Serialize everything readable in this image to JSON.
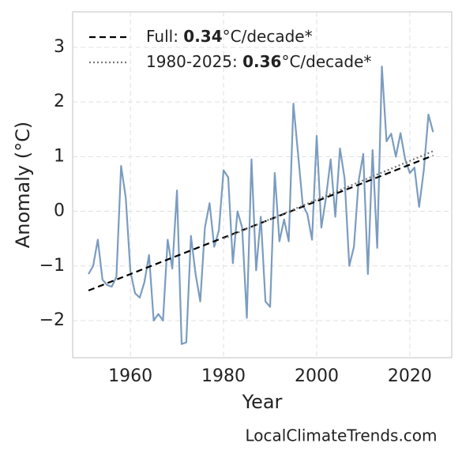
{
  "chart_data": {
    "type": "line",
    "x_label": "Year",
    "y_label": "Anomaly (°C)",
    "watermark": "LocalClimateTrends.com",
    "x": [
      1951,
      1952,
      1953,
      1954,
      1955,
      1956,
      1957,
      1958,
      1959,
      1960,
      1961,
      1962,
      1963,
      1964,
      1965,
      1966,
      1967,
      1968,
      1969,
      1970,
      1971,
      1972,
      1973,
      1974,
      1975,
      1976,
      1977,
      1978,
      1979,
      1980,
      1981,
      1982,
      1983,
      1984,
      1985,
      1986,
      1987,
      1988,
      1989,
      1990,
      1991,
      1992,
      1993,
      1994,
      1995,
      1996,
      1997,
      1998,
      1999,
      2000,
      2001,
      2002,
      2003,
      2004,
      2005,
      2006,
      2007,
      2008,
      2009,
      2010,
      2011,
      2012,
      2013,
      2014,
      2015,
      2016,
      2017,
      2018,
      2019,
      2020,
      2021,
      2022,
      2023,
      2024,
      2025
    ],
    "series": [
      {
        "color": "#7b9cc0",
        "values": [
          -1.15,
          -1.0,
          -0.52,
          -1.25,
          -1.35,
          -1.38,
          -1.2,
          0.83,
          0.25,
          -1.1,
          -1.5,
          -1.58,
          -1.3,
          -0.8,
          -2.0,
          -1.88,
          -2.0,
          -0.52,
          -1.05,
          0.38,
          -2.43,
          -2.4,
          -0.45,
          -1.15,
          -1.65,
          -0.3,
          0.15,
          -0.65,
          -0.35,
          0.75,
          0.62,
          -0.95,
          0.0,
          -0.3,
          -1.95,
          0.95,
          -1.08,
          -0.1,
          -1.65,
          -1.75,
          0.7,
          -0.55,
          -0.15,
          -0.55,
          1.97,
          1.05,
          0.12,
          -0.05,
          -0.52,
          1.38,
          -0.3,
          0.25,
          0.95,
          -0.1,
          1.15,
          0.6,
          -1.0,
          -0.65,
          0.55,
          1.05,
          -1.15,
          1.12,
          -0.67,
          2.65,
          1.28,
          1.42,
          1.0,
          1.43,
          0.95,
          0.7,
          0.8,
          0.08,
          0.75,
          1.77,
          1.45
        ]
      }
    ],
    "trends": [
      {
        "name": [
          "Full: ",
          "0.34",
          "°C/decade*"
        ],
        "color": "#000000",
        "dash": "dashed",
        "x": [
          1951,
          2025
        ],
        "values": [
          -1.45,
          1.02
        ]
      },
      {
        "name": [
          "1980-2025: ",
          "0.36",
          "°C/decade*"
        ],
        "color": "#777777",
        "dash": "dotted",
        "x": [
          1980,
          2025
        ],
        "values": [
          -0.5,
          1.1
        ]
      }
    ],
    "xlim": [
      1947.6,
      2029
    ],
    "ylim": [
      -2.68,
      3.65
    ],
    "xticks": [
      1960,
      1980,
      2000,
      2020
    ],
    "yticks": [
      {
        "value": -2,
        "label": "−2"
      },
      {
        "value": -1,
        "label": "−1"
      },
      0,
      1,
      2,
      3
    ],
    "grid": true,
    "legend": "upper left"
  }
}
